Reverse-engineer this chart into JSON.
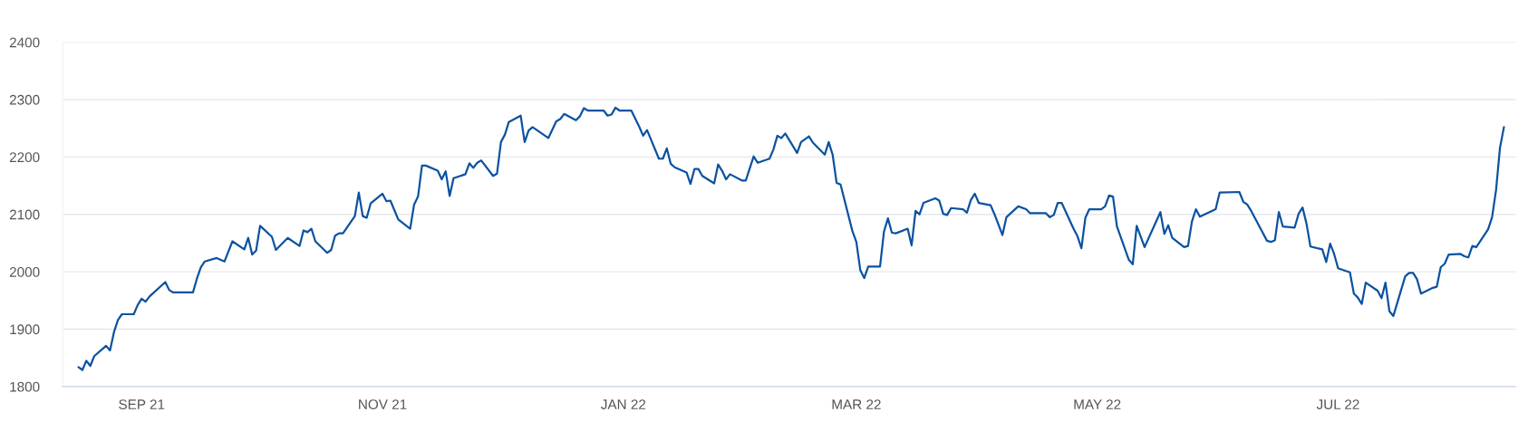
{
  "chart_data": {
    "type": "line",
    "color": "#0b52a0",
    "grid": "y",
    "marker": "none",
    "line_style": "solid",
    "x": [
      "2021-08-16",
      "2021-08-17",
      "2021-08-18",
      "2021-08-19",
      "2021-08-20",
      "2021-08-23",
      "2021-08-24",
      "2021-08-25",
      "2021-08-26",
      "2021-08-27",
      "2021-08-30",
      "2021-08-31",
      "2021-09-01",
      "2021-09-02",
      "2021-09-03",
      "2021-09-07",
      "2021-09-08",
      "2021-09-09",
      "2021-09-14",
      "2021-09-15",
      "2021-09-16",
      "2021-09-17",
      "2021-09-20",
      "2021-09-22",
      "2021-09-24",
      "2021-09-27",
      "2021-09-28",
      "2021-09-29",
      "2021-09-30",
      "2021-10-01",
      "2021-10-04",
      "2021-10-05",
      "2021-10-08",
      "2021-10-11",
      "2021-10-12",
      "2021-10-13",
      "2021-10-14",
      "2021-10-15",
      "2021-10-18",
      "2021-10-19",
      "2021-10-20",
      "2021-10-21",
      "2021-10-22",
      "2021-10-25",
      "2021-10-26",
      "2021-10-27",
      "2021-10-28",
      "2021-10-29",
      "2021-11-01",
      "2021-11-02",
      "2021-11-03",
      "2021-11-05",
      "2021-11-08",
      "2021-11-09",
      "2021-11-10",
      "2021-11-11",
      "2021-11-12",
      "2021-11-15",
      "2021-11-16",
      "2021-11-17",
      "2021-11-18",
      "2021-11-19",
      "2021-11-22",
      "2021-11-23",
      "2021-11-24",
      "2021-11-25",
      "2021-11-26",
      "2021-11-29",
      "2021-11-30",
      "2021-12-01",
      "2021-12-02",
      "2021-12-03",
      "2021-12-06",
      "2021-12-07",
      "2021-12-08",
      "2021-12-09",
      "2021-12-13",
      "2021-12-15",
      "2021-12-16",
      "2021-12-17",
      "2021-12-20",
      "2021-12-21",
      "2021-12-22",
      "2021-12-23",
      "2021-12-27",
      "2021-12-28",
      "2021-12-29",
      "2021-12-30",
      "2021-12-31",
      "2022-01-03",
      "2022-01-05",
      "2022-01-06",
      "2022-01-07",
      "2022-01-10",
      "2022-01-11",
      "2022-01-12",
      "2022-01-13",
      "2022-01-14",
      "2022-01-17",
      "2022-01-18",
      "2022-01-19",
      "2022-01-20",
      "2022-01-21",
      "2022-01-24",
      "2022-01-25",
      "2022-01-26",
      "2022-01-27",
      "2022-01-28",
      "2022-01-31",
      "2022-02-01",
      "2022-02-03",
      "2022-02-04",
      "2022-02-07",
      "2022-02-08",
      "2022-02-09",
      "2022-02-10",
      "2022-02-11",
      "2022-02-14",
      "2022-02-15",
      "2022-02-17",
      "2022-02-18",
      "2022-02-21",
      "2022-02-22",
      "2022-02-23",
      "2022-02-24",
      "2022-02-25",
      "2022-02-28",
      "2022-03-01",
      "2022-03-02",
      "2022-03-03",
      "2022-03-04",
      "2022-03-07",
      "2022-03-08",
      "2022-03-09",
      "2022-03-10",
      "2022-03-11",
      "2022-03-14",
      "2022-03-15",
      "2022-03-16",
      "2022-03-17",
      "2022-03-18",
      "2022-03-21",
      "2022-03-22",
      "2022-03-23",
      "2022-03-24",
      "2022-03-25",
      "2022-03-28",
      "2022-03-29",
      "2022-03-30",
      "2022-03-31",
      "2022-04-01",
      "2022-04-04",
      "2022-04-05",
      "2022-04-07",
      "2022-04-08",
      "2022-04-11",
      "2022-04-13",
      "2022-04-14",
      "2022-04-18",
      "2022-04-19",
      "2022-04-20",
      "2022-04-21",
      "2022-04-22",
      "2022-04-25",
      "2022-04-26",
      "2022-04-27",
      "2022-04-28",
      "2022-04-29",
      "2022-05-02",
      "2022-05-03",
      "2022-05-04",
      "2022-05-05",
      "2022-05-06",
      "2022-05-09",
      "2022-05-10",
      "2022-05-11",
      "2022-05-13",
      "2022-05-17",
      "2022-05-18",
      "2022-05-19",
      "2022-05-20",
      "2022-05-23",
      "2022-05-24",
      "2022-05-25",
      "2022-05-26",
      "2022-05-27",
      "2022-05-31",
      "2022-06-01",
      "2022-06-06",
      "2022-06-07",
      "2022-06-08",
      "2022-06-09",
      "2022-06-13",
      "2022-06-14",
      "2022-06-15",
      "2022-06-16",
      "2022-06-17",
      "2022-06-20",
      "2022-06-21",
      "2022-06-22",
      "2022-06-23",
      "2022-06-24",
      "2022-06-27",
      "2022-06-28",
      "2022-06-29",
      "2022-06-30",
      "2022-07-01",
      "2022-07-04",
      "2022-07-05",
      "2022-07-06",
      "2022-07-07",
      "2022-07-08",
      "2022-07-11",
      "2022-07-12",
      "2022-07-13",
      "2022-07-14",
      "2022-07-15",
      "2022-07-18",
      "2022-07-19",
      "2022-07-20",
      "2022-07-21",
      "2022-07-22",
      "2022-07-25",
      "2022-07-26",
      "2022-07-27",
      "2022-07-28",
      "2022-07-29",
      "2022-08-01",
      "2022-08-02",
      "2022-08-03",
      "2022-08-04",
      "2022-08-05",
      "2022-08-08",
      "2022-08-09",
      "2022-08-10",
      "2022-08-11",
      "2022-08-12"
    ],
    "values": [
      1834,
      1829,
      1845,
      1836,
      1853,
      1871,
      1863,
      1895,
      1916,
      1926,
      1926,
      1942,
      1953,
      1948,
      1957,
      1982,
      1968,
      1964,
      1964,
      1988,
      2008,
      2018,
      2024,
      2018,
      2053,
      2039,
      2059,
      2030,
      2037,
      2080,
      2061,
      2038,
      2059,
      2045,
      2072,
      2069,
      2075,
      2053,
      2033,
      2038,
      2063,
      2067,
      2067,
      2097,
      2138,
      2097,
      2094,
      2119,
      2136,
      2123,
      2124,
      2091,
      2075,
      2117,
      2131,
      2185,
      2185,
      2176,
      2161,
      2175,
      2132,
      2163,
      2170,
      2189,
      2181,
      2190,
      2194,
      2167,
      2171,
      2226,
      2239,
      2261,
      2272,
      2226,
      2246,
      2252,
      2233,
      2262,
      2266,
      2275,
      2264,
      2271,
      2285,
      2281,
      2281,
      2272,
      2274,
      2286,
      2281,
      2281,
      2253,
      2237,
      2247,
      2197,
      2197,
      2215,
      2188,
      2182,
      2173,
      2153,
      2179,
      2179,
      2167,
      2154,
      2187,
      2176,
      2161,
      2170,
      2159,
      2159,
      2201,
      2190,
      2197,
      2213,
      2237,
      2233,
      2241,
      2207,
      2226,
      2236,
      2225,
      2204,
      2226,
      2204,
      2155,
      2152,
      2071,
      2052,
      2003,
      1989,
      2009,
      2009,
      2070,
      2093,
      2068,
      2067,
      2075,
      2046,
      2106,
      2100,
      2120,
      2128,
      2124,
      2101,
      2099,
      2111,
      2109,
      2103,
      2125,
      2136,
      2120,
      2116,
      2100,
      2064,
      2095,
      2114,
      2109,
      2102,
      2102,
      2095,
      2099,
      2120,
      2120,
      2075,
      2062,
      2041,
      2094,
      2109,
      2109,
      2114,
      2133,
      2131,
      2079,
      2021,
      2013,
      2080,
      2043,
      2104,
      2066,
      2081,
      2059,
      2043,
      2045,
      2088,
      2109,
      2096,
      2109,
      2138,
      2139,
      2122,
      2117,
      2106,
      2054,
      2052,
      2055,
      2104,
      2079,
      2077,
      2101,
      2112,
      2084,
      2044,
      2039,
      2017,
      2049,
      2031,
      2006,
      1999,
      1962,
      1955,
      1944,
      1981,
      1967,
      1954,
      1981,
      1931,
      1923,
      1992,
      1998,
      1998,
      1987,
      1962,
      1972,
      1974,
      2008,
      2014,
      2030,
      2031,
      2027,
      2025,
      2045,
      2043,
      2074,
      2095,
      2142,
      2216,
      2252
    ],
    "xlim": [
      "2021-08-12",
      "2022-08-15"
    ],
    "xticks": [
      {
        "value": "2021-09-01",
        "label": "SEP 21"
      },
      {
        "value": "2021-11-01",
        "label": "NOV 21"
      },
      {
        "value": "2022-01-01",
        "label": "JAN 22"
      },
      {
        "value": "2022-03-01",
        "label": "MAR 22"
      },
      {
        "value": "2022-05-01",
        "label": "MAY 22"
      },
      {
        "value": "2022-07-01",
        "label": "JUL 22"
      }
    ],
    "ylim": [
      1800,
      2400
    ],
    "yticks": [
      1800,
      1900,
      2000,
      2100,
      2200,
      2300,
      2400
    ]
  }
}
